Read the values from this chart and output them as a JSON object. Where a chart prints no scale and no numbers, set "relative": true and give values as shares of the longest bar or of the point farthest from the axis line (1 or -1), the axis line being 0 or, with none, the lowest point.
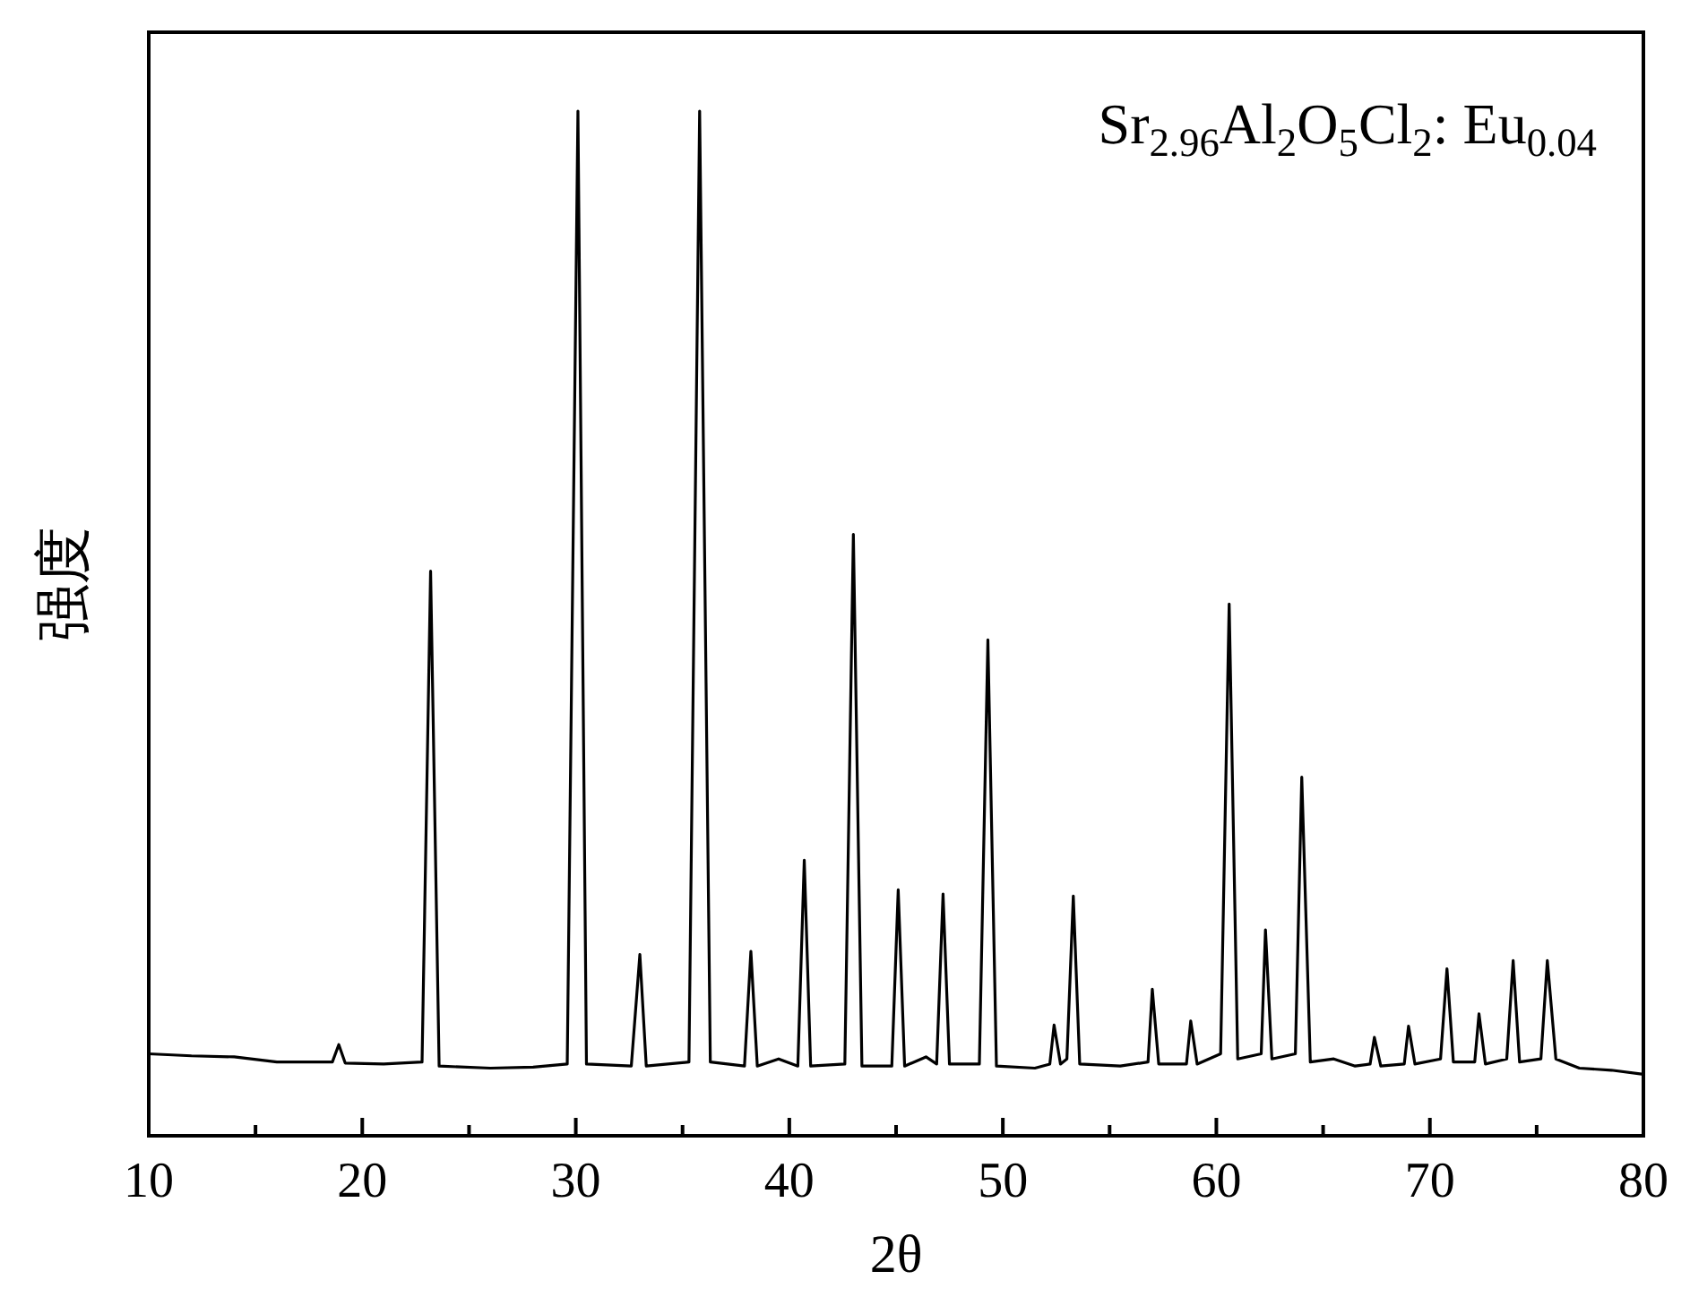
{
  "chart_data": {
    "type": "line",
    "relative": true,
    "xlabel": "2θ",
    "ylabel": "强度",
    "annotations": [
      "Sr$_{2.96}$Al$_{2}$O$_{5}$Cl$_{2}$: Eu$_{0.04}$"
    ],
    "xlim": [
      10,
      80
    ],
    "xticks": [
      10,
      {
        "value": 15,
        "label": null
      },
      20,
      {
        "value": 25,
        "label": null
      },
      30,
      {
        "value": 35,
        "label": null
      },
      40,
      {
        "value": 45,
        "label": null
      },
      50,
      {
        "value": 55,
        "label": null
      },
      60,
      {
        "value": 65,
        "label": null
      },
      70,
      {
        "value": 75,
        "label": null
      },
      80
    ],
    "tick_labels": "x",
    "grid": false,
    "marker": "none",
    "line_style": "solid",
    "color": "#000000",
    "x": [
      10,
      12,
      14,
      16,
      18.6,
      18.9,
      19.2,
      21,
      22.8,
      23.2,
      23.6,
      26,
      28,
      29.6,
      30.1,
      30.5,
      32.6,
      33.0,
      33.3,
      35.3,
      35.8,
      36.3,
      37.9,
      38.2,
      38.5,
      39.5,
      40.4,
      40.7,
      41.0,
      42.6,
      43.0,
      43.4,
      44.8,
      45.1,
      45.4,
      46.4,
      46.9,
      47.2,
      47.5,
      48.9,
      49.3,
      49.7,
      51.5,
      52.2,
      52.4,
      52.7,
      53.0,
      53.3,
      53.6,
      55.5,
      56.8,
      57.0,
      57.3,
      58.6,
      58.8,
      59.1,
      60.2,
      60.6,
      61.0,
      62.1,
      62.3,
      62.6,
      63.7,
      64.0,
      64.4,
      65.5,
      66.5,
      67.2,
      67.4,
      67.7,
      68.8,
      69.0,
      69.3,
      70.5,
      70.8,
      71.1,
      72.1,
      72.3,
      72.6,
      73.6,
      73.9,
      74.2,
      75.2,
      75.5,
      75.9,
      77,
      78.5,
      80
    ],
    "values": [
      0.08,
      0.078,
      0.077,
      0.072,
      0.072,
      0.089,
      0.071,
      0.07,
      0.072,
      0.551,
      0.068,
      0.066,
      0.067,
      0.07,
      1.0,
      0.07,
      0.068,
      0.177,
      0.068,
      0.072,
      1.0,
      0.072,
      0.068,
      0.18,
      0.068,
      0.075,
      0.068,
      0.269,
      0.068,
      0.07,
      0.587,
      0.068,
      0.068,
      0.24,
      0.068,
      0.077,
      0.07,
      0.236,
      0.07,
      0.07,
      0.484,
      0.068,
      0.066,
      0.07,
      0.108,
      0.07,
      0.075,
      0.234,
      0.07,
      0.068,
      0.072,
      0.143,
      0.07,
      0.07,
      0.112,
      0.07,
      0.08,
      0.519,
      0.075,
      0.08,
      0.201,
      0.075,
      0.08,
      0.35,
      0.072,
      0.075,
      0.068,
      0.07,
      0.096,
      0.068,
      0.07,
      0.107,
      0.07,
      0.075,
      0.163,
      0.072,
      0.072,
      0.119,
      0.07,
      0.075,
      0.171,
      0.072,
      0.075,
      0.171,
      0.075,
      0.066,
      0.064,
      0.06
    ]
  }
}
